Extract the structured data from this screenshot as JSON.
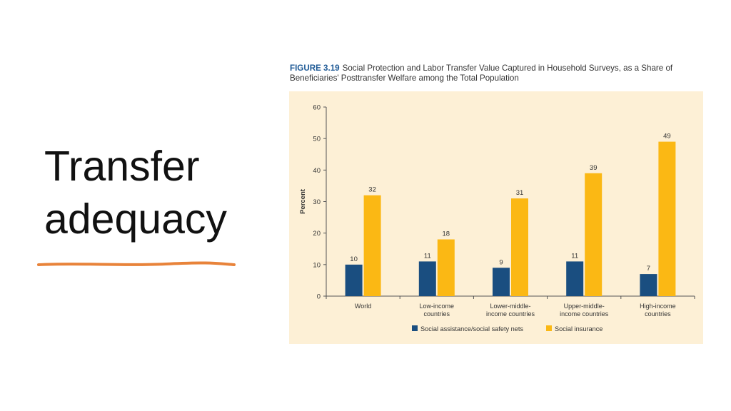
{
  "slide": {
    "title_line1": "Transfer",
    "title_line2": "adequacy",
    "underline_color": "#e8833a"
  },
  "figure": {
    "label": "FIGURE 3.19",
    "caption": "Social Protection and Labor Transfer Value Captured in Household Surveys, as a Share of Beneficiaries' Posttransfer Welfare among the Total Population"
  },
  "chart_data": {
    "type": "bar",
    "ylabel": "Percent",
    "xlabel": "",
    "ylim": [
      0,
      60
    ],
    "yticks": [
      0,
      10,
      20,
      30,
      40,
      50,
      60
    ],
    "categories": [
      [
        "World"
      ],
      [
        "Low-income",
        "countries"
      ],
      [
        "Lower-middle-",
        "income countries"
      ],
      [
        "Upper-middle-",
        "income countries"
      ],
      [
        "High-income",
        "countries"
      ]
    ],
    "series": [
      {
        "name": "Social assistance/social safety nets",
        "color": "#1a4e80",
        "values": [
          10,
          11,
          9,
          11,
          7
        ]
      },
      {
        "name": "Social insurance",
        "color": "#fbb814",
        "values": [
          32,
          18,
          31,
          39,
          49
        ]
      }
    ],
    "value_labels": [
      [
        "10",
        "11",
        "9",
        "11",
        "7"
      ],
      [
        "32",
        "18",
        "31",
        "39",
        "49"
      ]
    ],
    "legend_position": "bottom",
    "grid": false,
    "background": "#fdf0d6"
  }
}
